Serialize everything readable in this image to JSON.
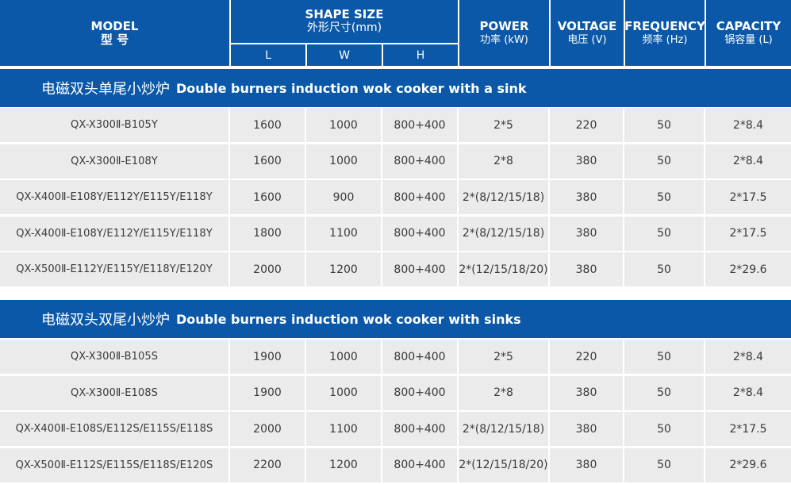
{
  "header": {
    "model_en": "MODEL",
    "model_cn": "型 号",
    "shape_en": "SHAPE SIZE",
    "shape_cn": "外形尺寸(mm)",
    "l": "L",
    "w": "W",
    "h": "H",
    "power_en": "POWER",
    "power_cn": "功率 (kW)",
    "voltage_en": "VOLTAGE",
    "voltage_cn": "电压 (V)",
    "frequency_en": "FREQUENCY",
    "frequency_cn": "频率 (Hz)",
    "capacity_en": "CAPACITY",
    "capacity_cn": "锅容量 (L)"
  },
  "section1": {
    "title_cn": "电磁双头单尾小炒炉",
    "title_en": "Double burners induction wok cooker with a sink",
    "rows": [
      {
        "model": "QX-X300Ⅱ-B105Y",
        "l": "1600",
        "w": "1000",
        "h": "800+400",
        "power": "2*5",
        "voltage": "220",
        "frequency": "50",
        "capacity": "2*8.4"
      },
      {
        "model": "QX-X300Ⅱ-E108Y",
        "l": "1600",
        "w": "1000",
        "h": "800+400",
        "power": "2*8",
        "voltage": "380",
        "frequency": "50",
        "capacity": "2*8.4"
      },
      {
        "model": "QX-X400Ⅱ-E108Y/E112Y/E115Y/E118Y",
        "l": "1600",
        "w": "900",
        "h": "800+400",
        "power": "2*(8/12/15/18)",
        "voltage": "380",
        "frequency": "50",
        "capacity": "2*17.5"
      },
      {
        "model": "QX-X400Ⅱ-E108Y/E112Y/E115Y/E118Y",
        "l": "1800",
        "w": "1100",
        "h": "800+400",
        "power": "2*(8/12/15/18)",
        "voltage": "380",
        "frequency": "50",
        "capacity": "2*17.5"
      },
      {
        "model": "QX-X500Ⅱ-E112Y/E115Y/E118Y/E120Y",
        "l": "2000",
        "w": "1200",
        "h": "800+400",
        "power": "2*(12/15/18/20)",
        "voltage": "380",
        "frequency": "50",
        "capacity": "2*29.6"
      }
    ]
  },
  "section2": {
    "title_cn": "电磁双头双尾小炒炉",
    "title_en": "Double burners induction wok cooker with sinks",
    "rows": [
      {
        "model": "QX-X300Ⅱ-B105S",
        "l": "1900",
        "w": "1000",
        "h": "800+400",
        "power": "2*5",
        "voltage": "220",
        "frequency": "50",
        "capacity": "2*8.4"
      },
      {
        "model": "QX-X300Ⅱ-E108S",
        "l": "1900",
        "w": "1000",
        "h": "800+400",
        "power": "2*8",
        "voltage": "380",
        "frequency": "50",
        "capacity": "2*8.4"
      },
      {
        "model": "QX-X400Ⅱ-E108S/E112S/E115S/E118S",
        "l": "2000",
        "w": "1100",
        "h": "800+400",
        "power": "2*(8/12/15/18)",
        "voltage": "380",
        "frequency": "50",
        "capacity": "2*17.5"
      },
      {
        "model": "QX-X500Ⅱ-E112S/E115S/E118S/E120S",
        "l": "2200",
        "w": "1200",
        "h": "800+400",
        "power": "2*(12/15/18/20)",
        "voltage": "380",
        "frequency": "50",
        "capacity": "2*29.6"
      }
    ]
  }
}
